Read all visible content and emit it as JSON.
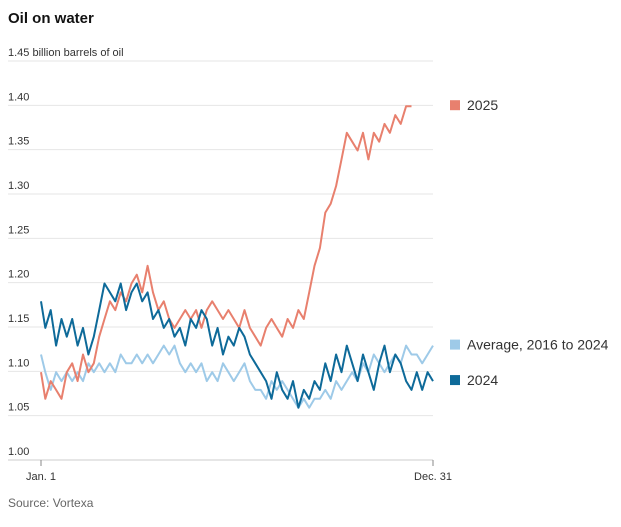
{
  "title": "Oil on water",
  "source": "Source: Vortexa",
  "chart_data": {
    "type": "line",
    "title": "Oil on water",
    "ylabel": "billion barrels of oil",
    "ylim": [
      1.0,
      1.45
    ],
    "yticks": [
      1.0,
      1.05,
      1.1,
      1.15,
      1.2,
      1.25,
      1.3,
      1.35,
      1.4,
      1.45
    ],
    "ytick_labels": [
      "1.00",
      "1.05",
      "1.10",
      "1.15",
      "1.20",
      "1.25",
      "1.30",
      "1.35",
      "1.40",
      "1.45 billion barrels of oil"
    ],
    "xlim": [
      1,
      365
    ],
    "x_tick_labels": [
      {
        "x": 1,
        "label": "Jan. 1"
      },
      {
        "x": 365,
        "label": "Dec. 31"
      }
    ],
    "source": "Source: Vortexa",
    "series": [
      {
        "name": "2025",
        "color": "#e8806e",
        "x": [
          1,
          5,
          10,
          15,
          20,
          25,
          30,
          35,
          40,
          45,
          50,
          55,
          60,
          65,
          70,
          75,
          80,
          85,
          90,
          95,
          100,
          105,
          110,
          115,
          120,
          125,
          130,
          135,
          140,
          145,
          150,
          155,
          160,
          165,
          170,
          175,
          180,
          185,
          190,
          195,
          200,
          205,
          210,
          215,
          220,
          225,
          230,
          235,
          240,
          245,
          250,
          255,
          260,
          265,
          270,
          275,
          280,
          285,
          290,
          295,
          300,
          305,
          310,
          315,
          320,
          325,
          330,
          335,
          340,
          345
        ],
        "y": [
          1.09,
          1.06,
          1.08,
          1.07,
          1.06,
          1.09,
          1.1,
          1.08,
          1.11,
          1.09,
          1.1,
          1.13,
          1.15,
          1.17,
          1.16,
          1.18,
          1.17,
          1.19,
          1.2,
          1.18,
          1.21,
          1.18,
          1.16,
          1.17,
          1.15,
          1.14,
          1.15,
          1.16,
          1.15,
          1.16,
          1.14,
          1.16,
          1.17,
          1.16,
          1.15,
          1.16,
          1.15,
          1.14,
          1.16,
          1.14,
          1.13,
          1.12,
          1.14,
          1.15,
          1.14,
          1.13,
          1.15,
          1.14,
          1.16,
          1.15,
          1.18,
          1.21,
          1.23,
          1.27,
          1.28,
          1.3,
          1.33,
          1.36,
          1.35,
          1.34,
          1.36,
          1.33,
          1.36,
          1.35,
          1.37,
          1.36,
          1.38,
          1.37,
          1.39,
          1.39
        ]
      },
      {
        "name": "Average, 2016 to 2024",
        "color": "#9ecae8",
        "x": [
          1,
          5,
          10,
          15,
          20,
          25,
          30,
          35,
          40,
          45,
          50,
          55,
          60,
          65,
          70,
          75,
          80,
          85,
          90,
          95,
          100,
          105,
          110,
          115,
          120,
          125,
          130,
          135,
          140,
          145,
          150,
          155,
          160,
          165,
          170,
          175,
          180,
          185,
          190,
          195,
          200,
          205,
          210,
          215,
          220,
          225,
          230,
          235,
          240,
          245,
          250,
          255,
          260,
          265,
          270,
          275,
          280,
          285,
          290,
          295,
          300,
          305,
          310,
          315,
          320,
          325,
          330,
          335,
          340,
          345,
          350,
          355,
          360,
          365
        ],
        "y": [
          1.11,
          1.09,
          1.07,
          1.09,
          1.08,
          1.09,
          1.08,
          1.09,
          1.08,
          1.1,
          1.09,
          1.1,
          1.09,
          1.1,
          1.09,
          1.11,
          1.1,
          1.1,
          1.11,
          1.1,
          1.11,
          1.1,
          1.11,
          1.12,
          1.11,
          1.12,
          1.1,
          1.09,
          1.1,
          1.09,
          1.1,
          1.08,
          1.09,
          1.08,
          1.1,
          1.09,
          1.08,
          1.09,
          1.1,
          1.08,
          1.07,
          1.07,
          1.06,
          1.08,
          1.07,
          1.08,
          1.07,
          1.06,
          1.05,
          1.06,
          1.05,
          1.06,
          1.06,
          1.07,
          1.06,
          1.08,
          1.07,
          1.08,
          1.09,
          1.08,
          1.1,
          1.09,
          1.11,
          1.1,
          1.09,
          1.1,
          1.11,
          1.1,
          1.12,
          1.11,
          1.11,
          1.1,
          1.11,
          1.12
        ]
      },
      {
        "name": "2024",
        "color": "#0e6a99",
        "x": [
          1,
          5,
          10,
          15,
          20,
          25,
          30,
          35,
          40,
          45,
          50,
          55,
          60,
          65,
          70,
          75,
          80,
          85,
          90,
          95,
          100,
          105,
          110,
          115,
          120,
          125,
          130,
          135,
          140,
          145,
          150,
          155,
          160,
          165,
          170,
          175,
          180,
          185,
          190,
          195,
          200,
          205,
          210,
          215,
          220,
          225,
          230,
          235,
          240,
          245,
          250,
          255,
          260,
          265,
          270,
          275,
          280,
          285,
          290,
          295,
          300,
          305,
          310,
          315,
          320,
          325,
          330,
          335,
          340,
          345,
          350,
          355,
          360,
          365
        ],
        "y": [
          1.17,
          1.14,
          1.16,
          1.12,
          1.15,
          1.13,
          1.15,
          1.12,
          1.14,
          1.11,
          1.13,
          1.16,
          1.19,
          1.18,
          1.17,
          1.19,
          1.16,
          1.18,
          1.19,
          1.17,
          1.18,
          1.15,
          1.16,
          1.14,
          1.15,
          1.13,
          1.14,
          1.12,
          1.15,
          1.14,
          1.16,
          1.15,
          1.12,
          1.14,
          1.11,
          1.13,
          1.12,
          1.14,
          1.13,
          1.11,
          1.1,
          1.09,
          1.08,
          1.06,
          1.09,
          1.07,
          1.06,
          1.08,
          1.05,
          1.07,
          1.06,
          1.08,
          1.07,
          1.1,
          1.08,
          1.11,
          1.09,
          1.12,
          1.1,
          1.08,
          1.11,
          1.09,
          1.07,
          1.1,
          1.12,
          1.09,
          1.11,
          1.1,
          1.08,
          1.07,
          1.09,
          1.07,
          1.09,
          1.08
        ]
      }
    ],
    "legend": [
      {
        "label": "2025",
        "color": "#e8806e",
        "anchor_y": 1.39
      },
      {
        "label": "Average, 2016 to 2024",
        "color": "#9ecae8",
        "anchor_y": 1.12
      },
      {
        "label": "2024",
        "color": "#0e6a99",
        "anchor_y": 1.08
      }
    ]
  }
}
